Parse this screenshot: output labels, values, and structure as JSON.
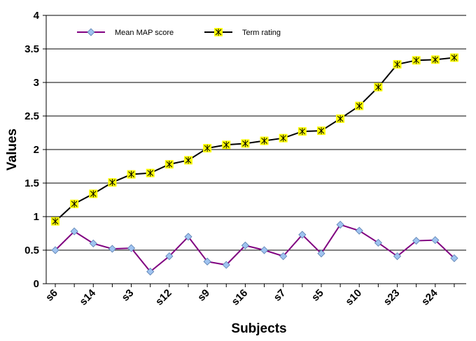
{
  "chart_data": {
    "type": "line",
    "title": "",
    "xlabel": "Subjects",
    "ylabel": "Values",
    "ylim": [
      0,
      4
    ],
    "yticks": [
      "0",
      "0.5",
      "1",
      "1.5",
      "2",
      "2.5",
      "3",
      "3.5",
      "4"
    ],
    "grid": "horizontal",
    "legend_position": "top-left",
    "x_tick_labels": [
      {
        "index": 0,
        "label": "s6"
      },
      {
        "index": 2,
        "label": "s14"
      },
      {
        "index": 4,
        "label": "s3"
      },
      {
        "index": 6,
        "label": "s12"
      },
      {
        "index": 8,
        "label": "s9"
      },
      {
        "index": 10,
        "label": "s16"
      },
      {
        "index": 12,
        "label": "s7"
      },
      {
        "index": 14,
        "label": "s5"
      },
      {
        "index": 16,
        "label": "s10"
      },
      {
        "index": 18,
        "label": "s23"
      },
      {
        "index": 20,
        "label": "s24"
      }
    ],
    "series": [
      {
        "name": "Mean MAP score",
        "color": "#800080",
        "marker": "diamond",
        "marker_color": "#9fc3f0",
        "values": [
          0.5,
          0.78,
          0.6,
          0.52,
          0.53,
          0.18,
          0.41,
          0.7,
          0.33,
          0.28,
          0.57,
          0.5,
          0.41,
          0.73,
          0.45,
          0.88,
          0.79,
          0.61,
          0.41,
          0.64,
          0.65,
          0.38
        ]
      },
      {
        "name": "Term rating",
        "color": "#000000",
        "marker": "star-square",
        "marker_color": "#ffff00",
        "values": [
          0.93,
          1.19,
          1.34,
          1.51,
          1.63,
          1.65,
          1.78,
          1.84,
          2.02,
          2.07,
          2.09,
          2.13,
          2.17,
          2.27,
          2.28,
          2.46,
          2.65,
          2.93,
          3.27,
          3.33,
          3.34,
          3.37
        ]
      }
    ]
  }
}
